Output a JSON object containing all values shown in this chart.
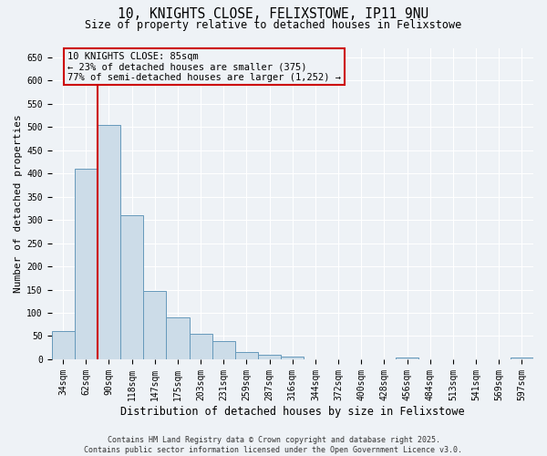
{
  "title_line1": "10, KNIGHTS CLOSE, FELIXSTOWE, IP11 9NU",
  "title_line2": "Size of property relative to detached houses in Felixstowe",
  "xlabel": "Distribution of detached houses by size in Felixstowe",
  "ylabel": "Number of detached properties",
  "categories": [
    "34sqm",
    "62sqm",
    "90sqm",
    "118sqm",
    "147sqm",
    "175sqm",
    "203sqm",
    "231sqm",
    "259sqm",
    "287sqm",
    "316sqm",
    "344sqm",
    "372sqm",
    "400sqm",
    "428sqm",
    "456sqm",
    "484sqm",
    "513sqm",
    "541sqm",
    "569sqm",
    "597sqm"
  ],
  "values": [
    60,
    410,
    505,
    310,
    147,
    90,
    55,
    40,
    15,
    10,
    5,
    0,
    0,
    0,
    0,
    3,
    0,
    0,
    0,
    0,
    3
  ],
  "bar_color": "#ccdce8",
  "bar_edge_color": "#6699bb",
  "vline_x": 1.5,
  "annotation_title": "10 KNIGHTS CLOSE: 85sqm",
  "annotation_line2": "← 23% of detached houses are smaller (375)",
  "annotation_line3": "77% of semi-detached houses are larger (1,252) →",
  "annotation_box_color": "#cc0000",
  "ylim": [
    0,
    670
  ],
  "yticks": [
    0,
    50,
    100,
    150,
    200,
    250,
    300,
    350,
    400,
    450,
    500,
    550,
    600,
    650
  ],
  "footer_line1": "Contains HM Land Registry data © Crown copyright and database right 2025.",
  "footer_line2": "Contains public sector information licensed under the Open Government Licence v3.0.",
  "bg_color": "#eef2f6",
  "grid_color": "#ffffff",
  "title_fontsize": 10.5,
  "subtitle_fontsize": 8.5,
  "tick_fontsize": 7,
  "ylabel_fontsize": 8,
  "xlabel_fontsize": 8.5,
  "footer_fontsize": 6,
  "ann_fontsize": 7.5
}
